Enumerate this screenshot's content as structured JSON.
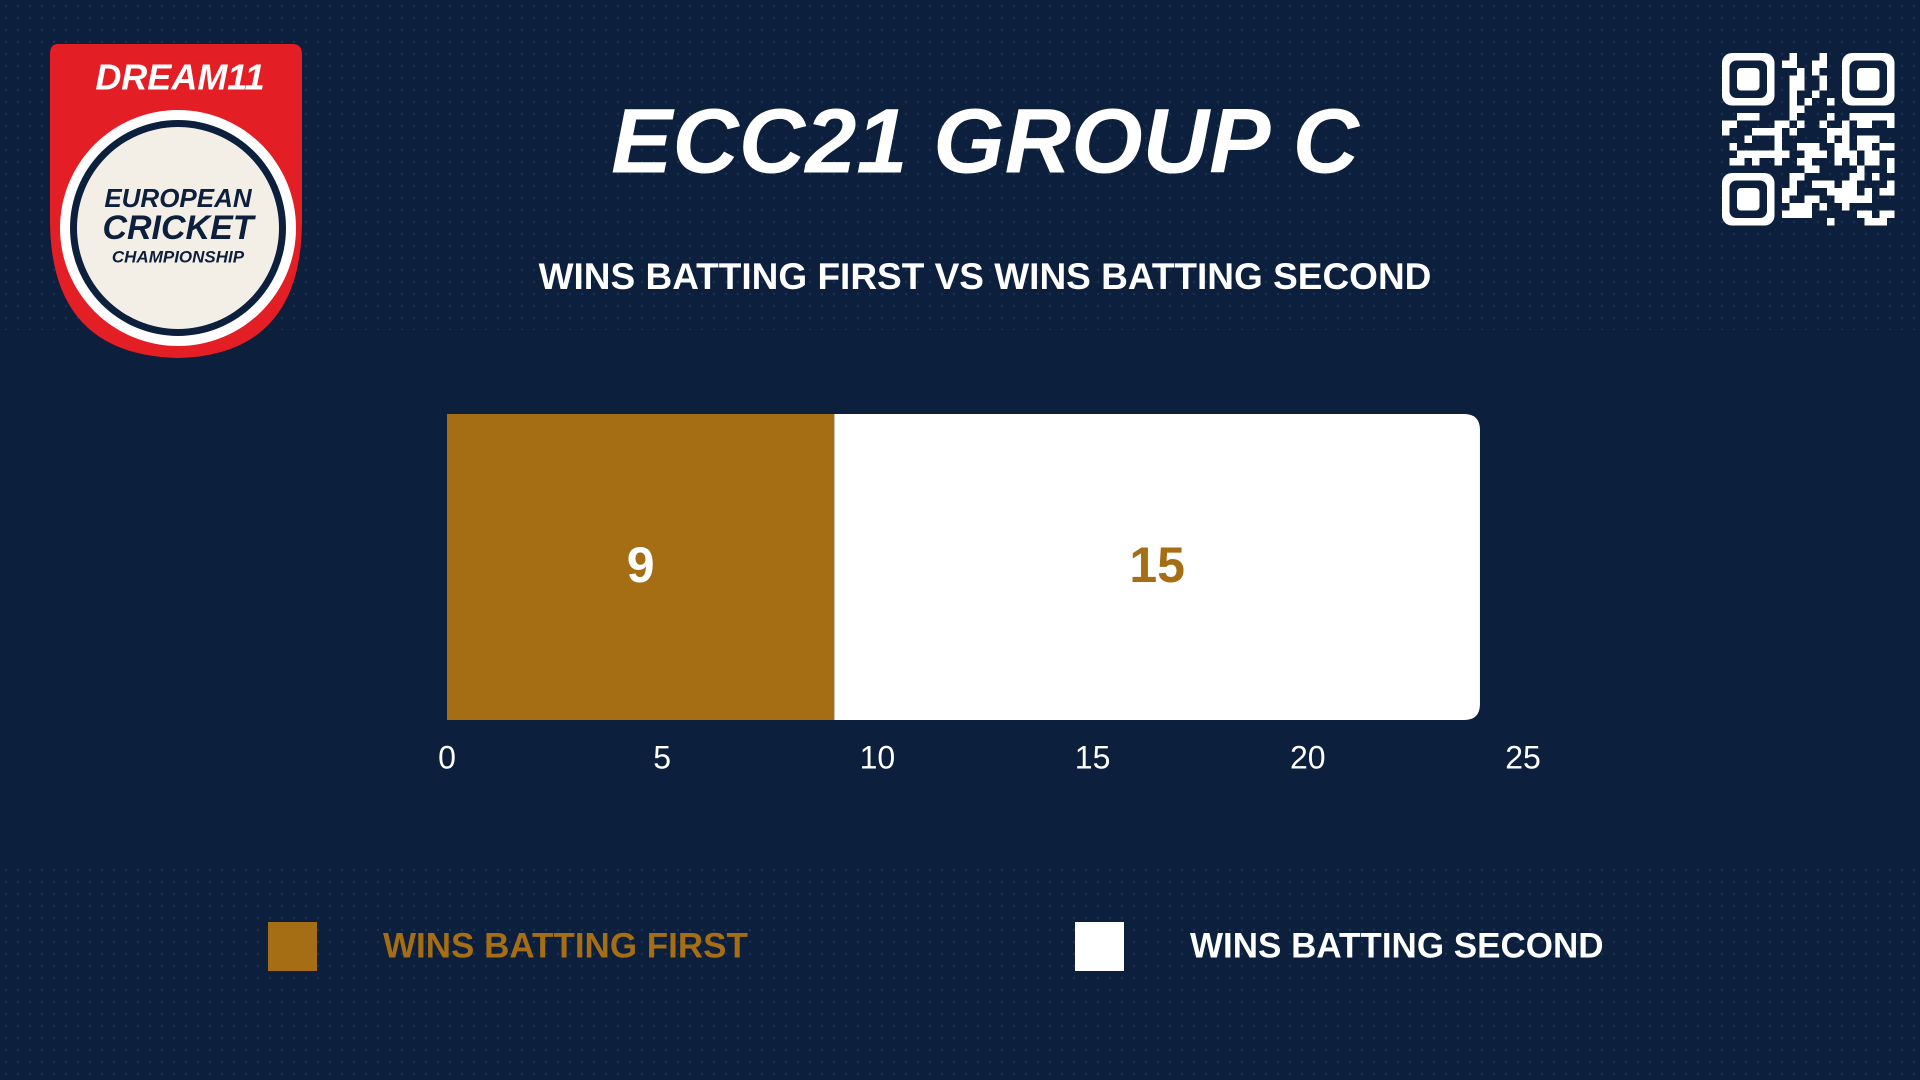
{
  "logo": {
    "brand": "DREAM11",
    "lines": [
      "EUROPEAN",
      "CRICKET",
      "CHAMPIONSHIP"
    ]
  },
  "chart_data": {
    "type": "stacked_bar",
    "title": "ECC21 GROUP C",
    "subtitle": "WINS BATTING FIRST VS WINS BATTING SECOND",
    "series": [
      {
        "name": "WINS BATTING FIRST",
        "color": "#a56d14",
        "values": [
          9
        ]
      },
      {
        "name": "WINS BATTING SECOND",
        "color": "#ffffff",
        "values": [
          15
        ]
      }
    ],
    "xlim": [
      0,
      25
    ],
    "xticks": [
      0,
      5,
      10,
      15,
      20,
      25
    ],
    "grid": false
  }
}
